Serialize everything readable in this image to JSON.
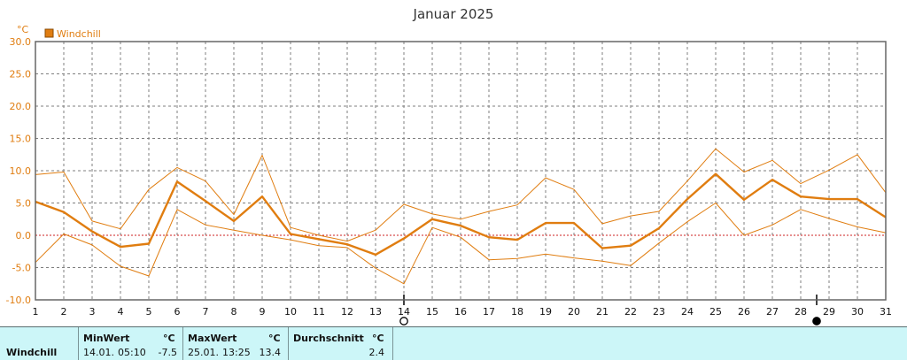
{
  "chart_data": {
    "type": "line",
    "title": "Januar 2025",
    "ylabel": "°C",
    "ylim": [
      -10,
      30
    ],
    "yticks": [
      "30.0",
      "25.0",
      "20.0",
      "15.0",
      "10.0",
      "5.0",
      "0.0",
      "-5.0",
      "-10.0"
    ],
    "categories": [
      "1",
      "2",
      "3",
      "4",
      "5",
      "6",
      "7",
      "8",
      "9",
      "10",
      "11",
      "12",
      "13",
      "14",
      "15",
      "16",
      "17",
      "18",
      "19",
      "20",
      "21",
      "22",
      "23",
      "24",
      "25",
      "26",
      "27",
      "28",
      "29",
      "30",
      "31"
    ],
    "legend": "Windchill",
    "grid": true,
    "legend_position": "top-left",
    "series": [
      {
        "name": "Windchill",
        "role": "average",
        "color": "#e07d10",
        "values": [
          5.2,
          3.6,
          0.6,
          -1.8,
          -1.3,
          8.3,
          5.3,
          2.2,
          6.0,
          0.2,
          -0.6,
          -1.4,
          -3.0,
          -0.5,
          2.5,
          1.5,
          -0.3,
          -0.7,
          1.9,
          1.9,
          -2.0,
          -1.6,
          1.1,
          5.6,
          9.5,
          5.5,
          8.6,
          6.0,
          5.6,
          5.6,
          2.8
        ]
      },
      {
        "role": "max",
        "color": "#e07d10",
        "values": [
          9.4,
          9.8,
          2.2,
          1.0,
          7.1,
          10.5,
          8.4,
          3.2,
          12.4,
          1.2,
          0.0,
          -0.9,
          0.8,
          4.8,
          3.3,
          2.5,
          3.7,
          4.7,
          8.9,
          7.1,
          1.8,
          3.0,
          3.7,
          8.4,
          13.4,
          9.8,
          11.6,
          8.0,
          10.1,
          12.5,
          6.6
        ]
      },
      {
        "role": "min",
        "color": "#e07d10",
        "values": [
          -4.2,
          0.2,
          -1.5,
          -4.8,
          -6.3,
          4.0,
          1.6,
          0.8,
          0.0,
          -0.7,
          -1.6,
          -1.9,
          -5.1,
          -7.5,
          1.2,
          -0.3,
          -3.8,
          -3.6,
          -2.9,
          -3.5,
          -4.0,
          -4.7,
          -1.2,
          2.1,
          5.0,
          0.0,
          1.6,
          4.0,
          2.6,
          1.3,
          0.4
        ]
      }
    ],
    "moon_phases": [
      {
        "day": 14,
        "phase": "full"
      },
      {
        "day": 29,
        "phase": "new"
      }
    ]
  },
  "stats": {
    "row_label": "Windchill",
    "min_header": "MinWert",
    "min_unit": "°C",
    "min_date": "14.01.",
    "min_time": "05:10",
    "min_value": "-7.5",
    "max_header": "MaxWert",
    "max_unit": "°C",
    "max_date": "25.01.",
    "max_time": "13:25",
    "max_value": "13.4",
    "avg_header": "Durchschnitt",
    "avg_unit": "°C",
    "avg_value": "2.4"
  },
  "colors": {
    "line": "#e07d10",
    "zero_line": "#cc2222",
    "grid": "#7f7f7f",
    "stats_bg": "#ccf6f8"
  }
}
